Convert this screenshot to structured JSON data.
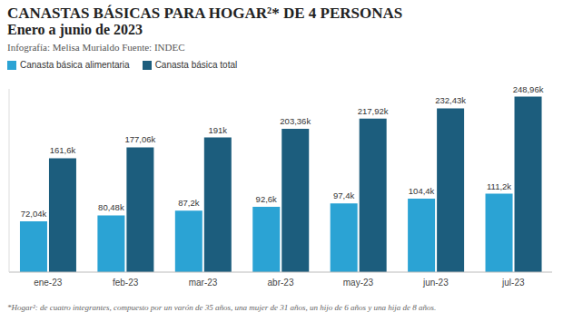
{
  "chart_data": {
    "type": "bar",
    "title": "CANASTAS BÁSICAS PARA HOGAR²* DE 4 PERSONAS",
    "subtitle": "Enero a junio de 2023",
    "source": "Infografía: Melisa Murialdo Fuente: INDEC",
    "footnote": "*Hogar²: de cuatro integrantes, compuesto por un varón de 35 años, una mujer de 31 años, un hijo de 6 años y una hija de 8 años.",
    "categories": [
      "ene-23",
      "feb-23",
      "mar-23",
      "abr-23",
      "may-23",
      "jun-23",
      "jul-23"
    ],
    "series": [
      {
        "name": "Canasta básica alimentaria",
        "color": "#2ba3d4",
        "values": [
          72.04,
          80.48,
          87.2,
          92.6,
          97.4,
          104.4,
          111.2
        ],
        "value_labels": [
          "72,04k",
          "80,48k",
          "87,2k",
          "92,6k",
          "97,4k",
          "104,4k",
          "111,2k"
        ]
      },
      {
        "name": "Canasta básica total",
        "color": "#1c5d7d",
        "values": [
          161.6,
          177.06,
          191.0,
          203.36,
          217.92,
          232.43,
          248.96
        ],
        "value_labels": [
          "161,6k",
          "177,06k",
          "191k",
          "203,36k",
          "217,92k",
          "232,43k",
          "248,96k"
        ]
      }
    ],
    "ylim": [
      0,
      260
    ],
    "data_labels": true,
    "tick_labels": "x",
    "legend": "top left",
    "grid": false
  }
}
